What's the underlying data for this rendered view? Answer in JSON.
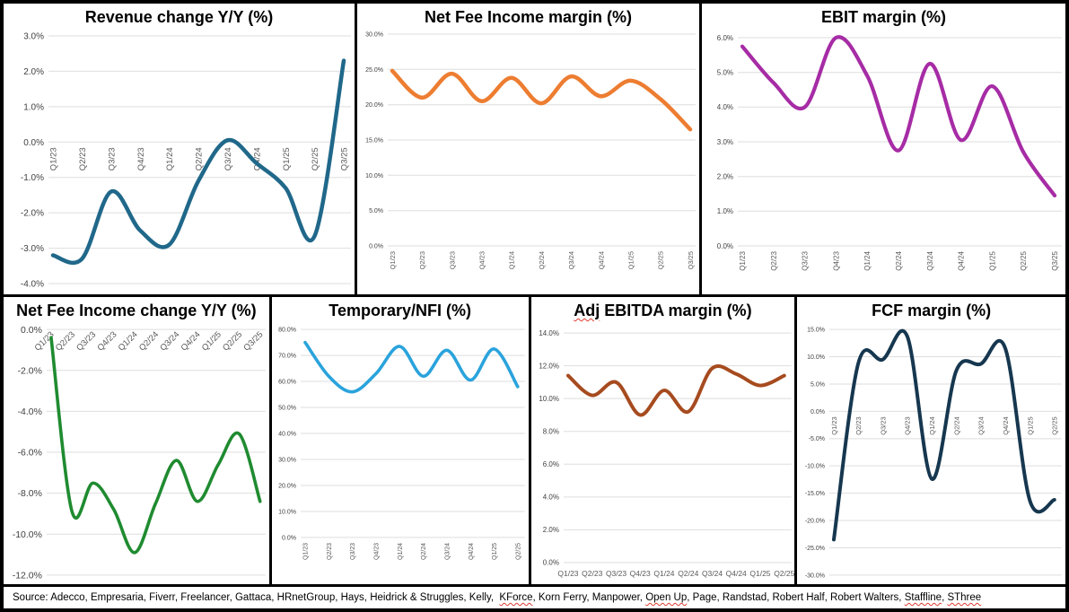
{
  "colors": {
    "background": "#ffffff",
    "panel_border": "#000000",
    "gridline": "#dedede",
    "tick_text": "#3f3f3f",
    "xlabel_text": "#595959",
    "title_text": "#000000",
    "spellcheck_underline": "#e03c31"
  },
  "chart_data": [
    {
      "id": "revenue-change",
      "type": "line",
      "title": "Revenue change Y/Y (%)",
      "color": "#20688a",
      "categories": [
        "Q1/23",
        "Q2/23",
        "Q3/23",
        "Q4/23",
        "Q1/24",
        "Q2/24",
        "Q3/24",
        "Q4/24",
        "Q1/25",
        "Q2/25",
        "Q3/25"
      ],
      "values": [
        -3.2,
        -3.3,
        -1.4,
        -2.5,
        -2.9,
        -1.1,
        0.05,
        -0.6,
        -1.3,
        -2.65,
        2.3
      ],
      "ylim": [
        -4,
        3
      ],
      "yticks": [
        3,
        2,
        1,
        0,
        -1,
        -2,
        -3,
        -4
      ],
      "ytick_labels": [
        "3.0%",
        "2.0%",
        "1.0%",
        "0.0%",
        "-1.0%",
        "-2.0%",
        "-3.0%",
        "-4.0%"
      ],
      "xlabel_style": "vertical-at-zero",
      "grid": true,
      "legend": "none",
      "smooth": true
    },
    {
      "id": "net-fee-income-margin",
      "type": "line",
      "title": "Net Fee Income margin (%)",
      "color": "#ed7d31",
      "categories": [
        "Q1/23",
        "Q2/23",
        "Q3/23",
        "Q4/23",
        "Q1/24",
        "Q2/24",
        "Q3/24",
        "Q4/24",
        "Q1/25",
        "Q2/25",
        "Q3/25"
      ],
      "values": [
        24.8,
        21.0,
        24.4,
        20.5,
        23.8,
        20.2,
        24.0,
        21.2,
        23.4,
        20.8,
        16.5
      ],
      "ylim": [
        0,
        30
      ],
      "yticks": [
        30,
        25,
        20,
        15,
        10,
        5,
        0
      ],
      "ytick_labels": [
        "30.0%",
        "25.0%",
        "20.0%",
        "15.0%",
        "10.0%",
        "5.0%",
        "0.0%"
      ],
      "xlabel_style": "vertical-bottom",
      "grid": true,
      "legend": "none",
      "smooth": true
    },
    {
      "id": "ebit-margin",
      "type": "line",
      "title": "EBIT margin (%)",
      "color": "#a62ca5",
      "categories": [
        "Q1/23",
        "Q2/23",
        "Q3/23",
        "Q4/23",
        "Q1/24",
        "Q2/24",
        "Q3/24",
        "Q4/24",
        "Q1/25",
        "Q2/25",
        "Q3/25"
      ],
      "values": [
        5.75,
        4.7,
        4.0,
        6.0,
        4.9,
        2.75,
        5.25,
        3.05,
        4.6,
        2.7,
        1.45
      ],
      "ylim": [
        0,
        6
      ],
      "yticks": [
        6,
        5,
        4,
        3,
        2,
        1,
        0
      ],
      "ytick_labels": [
        "6.0%",
        "5.0%",
        "4.0%",
        "3.0%",
        "2.0%",
        "1.0%",
        "0.0%"
      ],
      "xlabel_style": "vertical-bottom",
      "grid": true,
      "legend": "none",
      "smooth": true
    },
    {
      "id": "net-fee-income-change",
      "type": "line",
      "title": "Net Fee Income change Y/Y (%)",
      "color": "#1f8b30",
      "categories": [
        "Q1/23",
        "Q2/23",
        "Q3/23",
        "Q4/23",
        "Q1/24",
        "Q2/24",
        "Q3/24",
        "Q4/24",
        "Q1/25",
        "Q2/25",
        "Q3/25"
      ],
      "values": [
        -0.4,
        -8.9,
        -7.5,
        -8.8,
        -10.9,
        -8.5,
        -6.4,
        -8.4,
        -6.6,
        -5.1,
        -8.4
      ],
      "ylim": [
        -12,
        0
      ],
      "yticks": [
        0,
        -2,
        -4,
        -6,
        -8,
        -10,
        -12
      ],
      "ytick_labels": [
        "0.0%",
        "-2.0%",
        "-4.0%",
        "-6.0%",
        "-8.0%",
        "-10.0%",
        "-12.0%"
      ],
      "xlabel_style": "diagonal-at-zero",
      "grid": true,
      "legend": "none",
      "smooth": true
    },
    {
      "id": "temporary-nfi",
      "type": "line",
      "title": "Temporary/NFI (%)",
      "color": "#2aa3dc",
      "categories": [
        "Q1/23",
        "Q2/23",
        "Q3/23",
        "Q4/23",
        "Q1/24",
        "Q2/24",
        "Q3/24",
        "Q4/24",
        "Q1/25",
        "Q2/25"
      ],
      "values": [
        75,
        62,
        56,
        63,
        73.5,
        62,
        72,
        60.5,
        72.5,
        58
      ],
      "ylim": [
        0,
        80
      ],
      "yticks": [
        80,
        70,
        60,
        50,
        40,
        30,
        20,
        10,
        0
      ],
      "ytick_labels": [
        "80.0%",
        "70.0%",
        "60.0%",
        "50.0%",
        "40.0%",
        "30.0%",
        "20.0%",
        "10.0%",
        "0.0%"
      ],
      "xlabel_style": "vertical-bottom",
      "grid": true,
      "legend": "none",
      "smooth": true
    },
    {
      "id": "adj-ebitda-margin",
      "type": "line",
      "title": "Adj EBITDA margin (%)",
      "title_spellcheck_word": "Adj",
      "color": "#a64b1f",
      "categories": [
        "Q1/23",
        "Q2/23",
        "Q3/23",
        "Q4/23",
        "Q1/24",
        "Q2/24",
        "Q3/24",
        "Q4/24",
        "Q1/25",
        "Q2/25"
      ],
      "values": [
        11.4,
        10.2,
        11.0,
        9.0,
        10.5,
        9.2,
        11.85,
        11.5,
        10.8,
        11.4
      ],
      "ylim": [
        0,
        14
      ],
      "yticks": [
        14,
        12,
        10,
        8,
        6,
        4,
        2,
        0
      ],
      "ytick_labels": [
        "14.0%",
        "12.0%",
        "10.0%",
        "8.0%",
        "6.0%",
        "4.0%",
        "2.0%",
        "0.0%"
      ],
      "xlabel_style": "horizontal-bottom",
      "grid": true,
      "legend": "none",
      "smooth": true
    },
    {
      "id": "fcf-margin",
      "type": "line",
      "title": "FCF margin (%)",
      "color": "#16374f",
      "categories": [
        "Q1/23",
        "Q2/23",
        "Q3/23",
        "Q4/23",
        "Q1/24",
        "Q2/24",
        "Q3/24",
        "Q4/24",
        "Q1/25",
        "Q2/25"
      ],
      "values": [
        -23.5,
        8.8,
        9.5,
        13.7,
        -12.4,
        7.5,
        8.7,
        11.5,
        -16.4,
        -16.2
      ],
      "ylim": [
        -30,
        15
      ],
      "yticks": [
        15,
        10,
        5,
        0,
        -5,
        -10,
        -15,
        -20,
        -25,
        -30
      ],
      "ytick_labels": [
        "15.0%",
        "10.0%",
        "5.0%",
        "0.0%",
        "-5.0%",
        "-10.0%",
        "-15.0%",
        "-20.0%",
        "-25.0%",
        "-30.0%"
      ],
      "xlabel_style": "vertical-at-zero",
      "grid": true,
      "legend": "none",
      "smooth": true
    }
  ],
  "footer": {
    "segments": [
      {
        "text": "Source: Adecco, Empresaria, Fiverr, Freelancer, Gattaca, HRnetGroup, Hays, Heidrick & Struggles, Kelly,  ",
        "spellcheck": false
      },
      {
        "text": "KForce",
        "spellcheck": true
      },
      {
        "text": ", Korn Ferry, Manpower, ",
        "spellcheck": false
      },
      {
        "text": "Open Up",
        "spellcheck": true
      },
      {
        "text": ", Page, Randstad, Robert Half, Robert Walters, ",
        "spellcheck": false
      },
      {
        "text": "Staffline",
        "spellcheck": true
      },
      {
        "text": ", ",
        "spellcheck": false
      },
      {
        "text": "SThree",
        "spellcheck": true
      }
    ]
  }
}
